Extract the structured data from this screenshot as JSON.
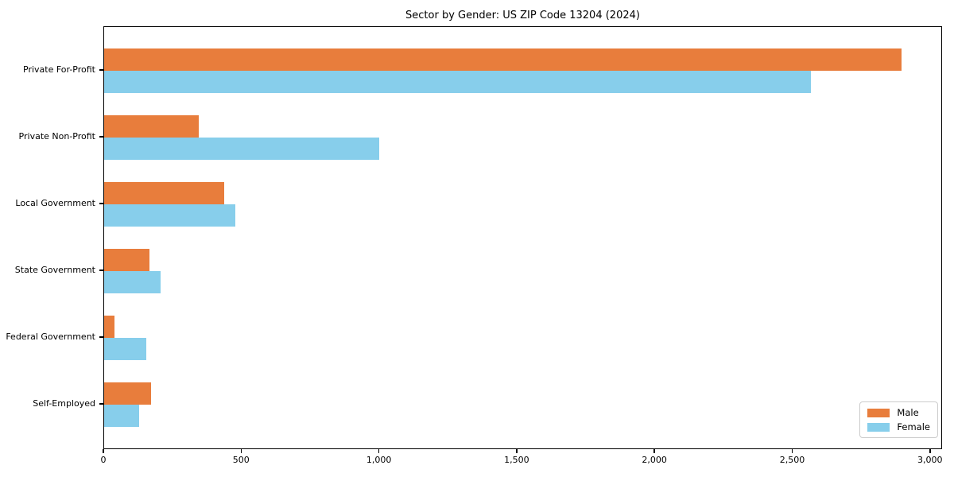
{
  "title": "Sector by Gender: US ZIP Code 13204 (2024)",
  "chart_data": {
    "type": "bar",
    "orientation": "horizontal",
    "title": "Sector by Gender: US ZIP Code 13204 (2024)",
    "categories": [
      "Private For-Profit",
      "Private Non-Profit",
      "Local Government",
      "State Government",
      "Federal Government",
      "Self-Employed"
    ],
    "series": [
      {
        "name": "Male",
        "color": "#E87D3C",
        "values": [
          2900,
          345,
          437,
          165,
          38,
          170
        ]
      },
      {
        "name": "Female",
        "color": "#87CEEB",
        "values": [
          2570,
          1000,
          478,
          206,
          153,
          127
        ]
      }
    ],
    "xlim": [
      0,
      3044
    ],
    "xticks": [
      0,
      500,
      1000,
      1500,
      2000,
      2500,
      3000
    ],
    "xtick_labels": [
      "0",
      "500",
      "1,000",
      "1,500",
      "2,000",
      "2,500",
      "3,000"
    ],
    "xlabel": "",
    "ylabel": "",
    "grid": false,
    "legend_position": "lower right"
  },
  "legend": {
    "items": [
      {
        "label": "Male"
      },
      {
        "label": "Female"
      }
    ]
  }
}
